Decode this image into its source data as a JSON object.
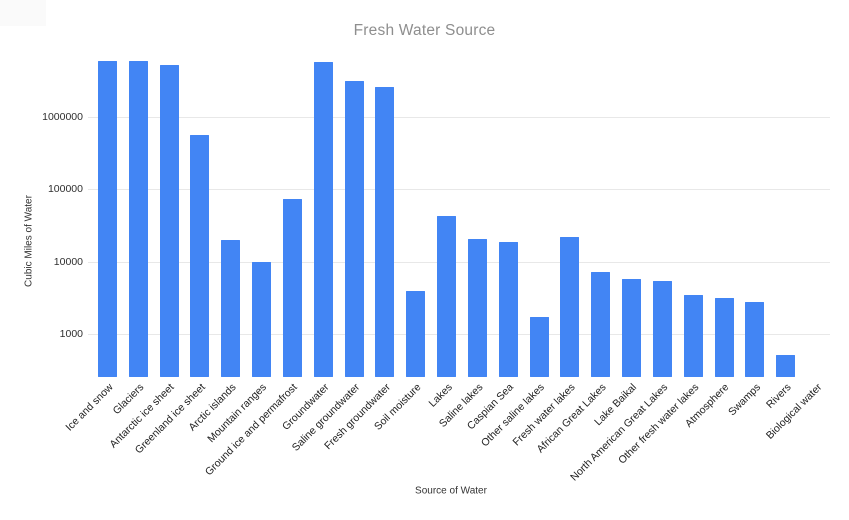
{
  "chart_data": {
    "type": "bar",
    "title": "Fresh Water Source",
    "xlabel": "Source of Water",
    "ylabel": "Cubic Miles of Water",
    "y_scale": "log",
    "ylim": [
      255,
      8200000
    ],
    "y_ticks": [
      1000,
      10000,
      100000,
      1000000
    ],
    "y_tick_labels": [
      "1000",
      "10000",
      "100000",
      "1000000"
    ],
    "grid": true,
    "legend": "none",
    "categories": [
      "Ice and snow",
      "Glaciers",
      "Antarctic ice sheet",
      "Greenland ice sheet",
      "Arctic islands",
      "Mountain ranges",
      "Ground ice and permafrost",
      "Groundwater",
      "Saline groundwater",
      "Fresh groundwater",
      "Soil moisture",
      "Lakes",
      "Saline lakes",
      "Caspian Sea",
      "Other saline lakes",
      "Fresh water lakes",
      "African Great Lakes",
      "Lake Baikal",
      "North American Great Lakes",
      "Other fresh water lakes",
      "Atmosphere",
      "Swamps",
      "Rivers",
      "Biological water"
    ],
    "values": [
      5845000,
      5773000,
      5182000,
      561000,
      20000,
      9700,
      71970,
      5614000,
      3088000,
      2526000,
      3959,
      42320,
      20490,
      18761,
      1728,
      21830,
      7214,
      5666,
      5446,
      3506,
      3095,
      2752,
      509,
      269
    ],
    "colors": {
      "bar": "#4285f4",
      "grid_line": "#e8e8e8",
      "title_text": "#8e8e8e",
      "axis_title_text": "#333333",
      "tick_text": "#2f2f2f",
      "category_text": "#222222"
    }
  }
}
